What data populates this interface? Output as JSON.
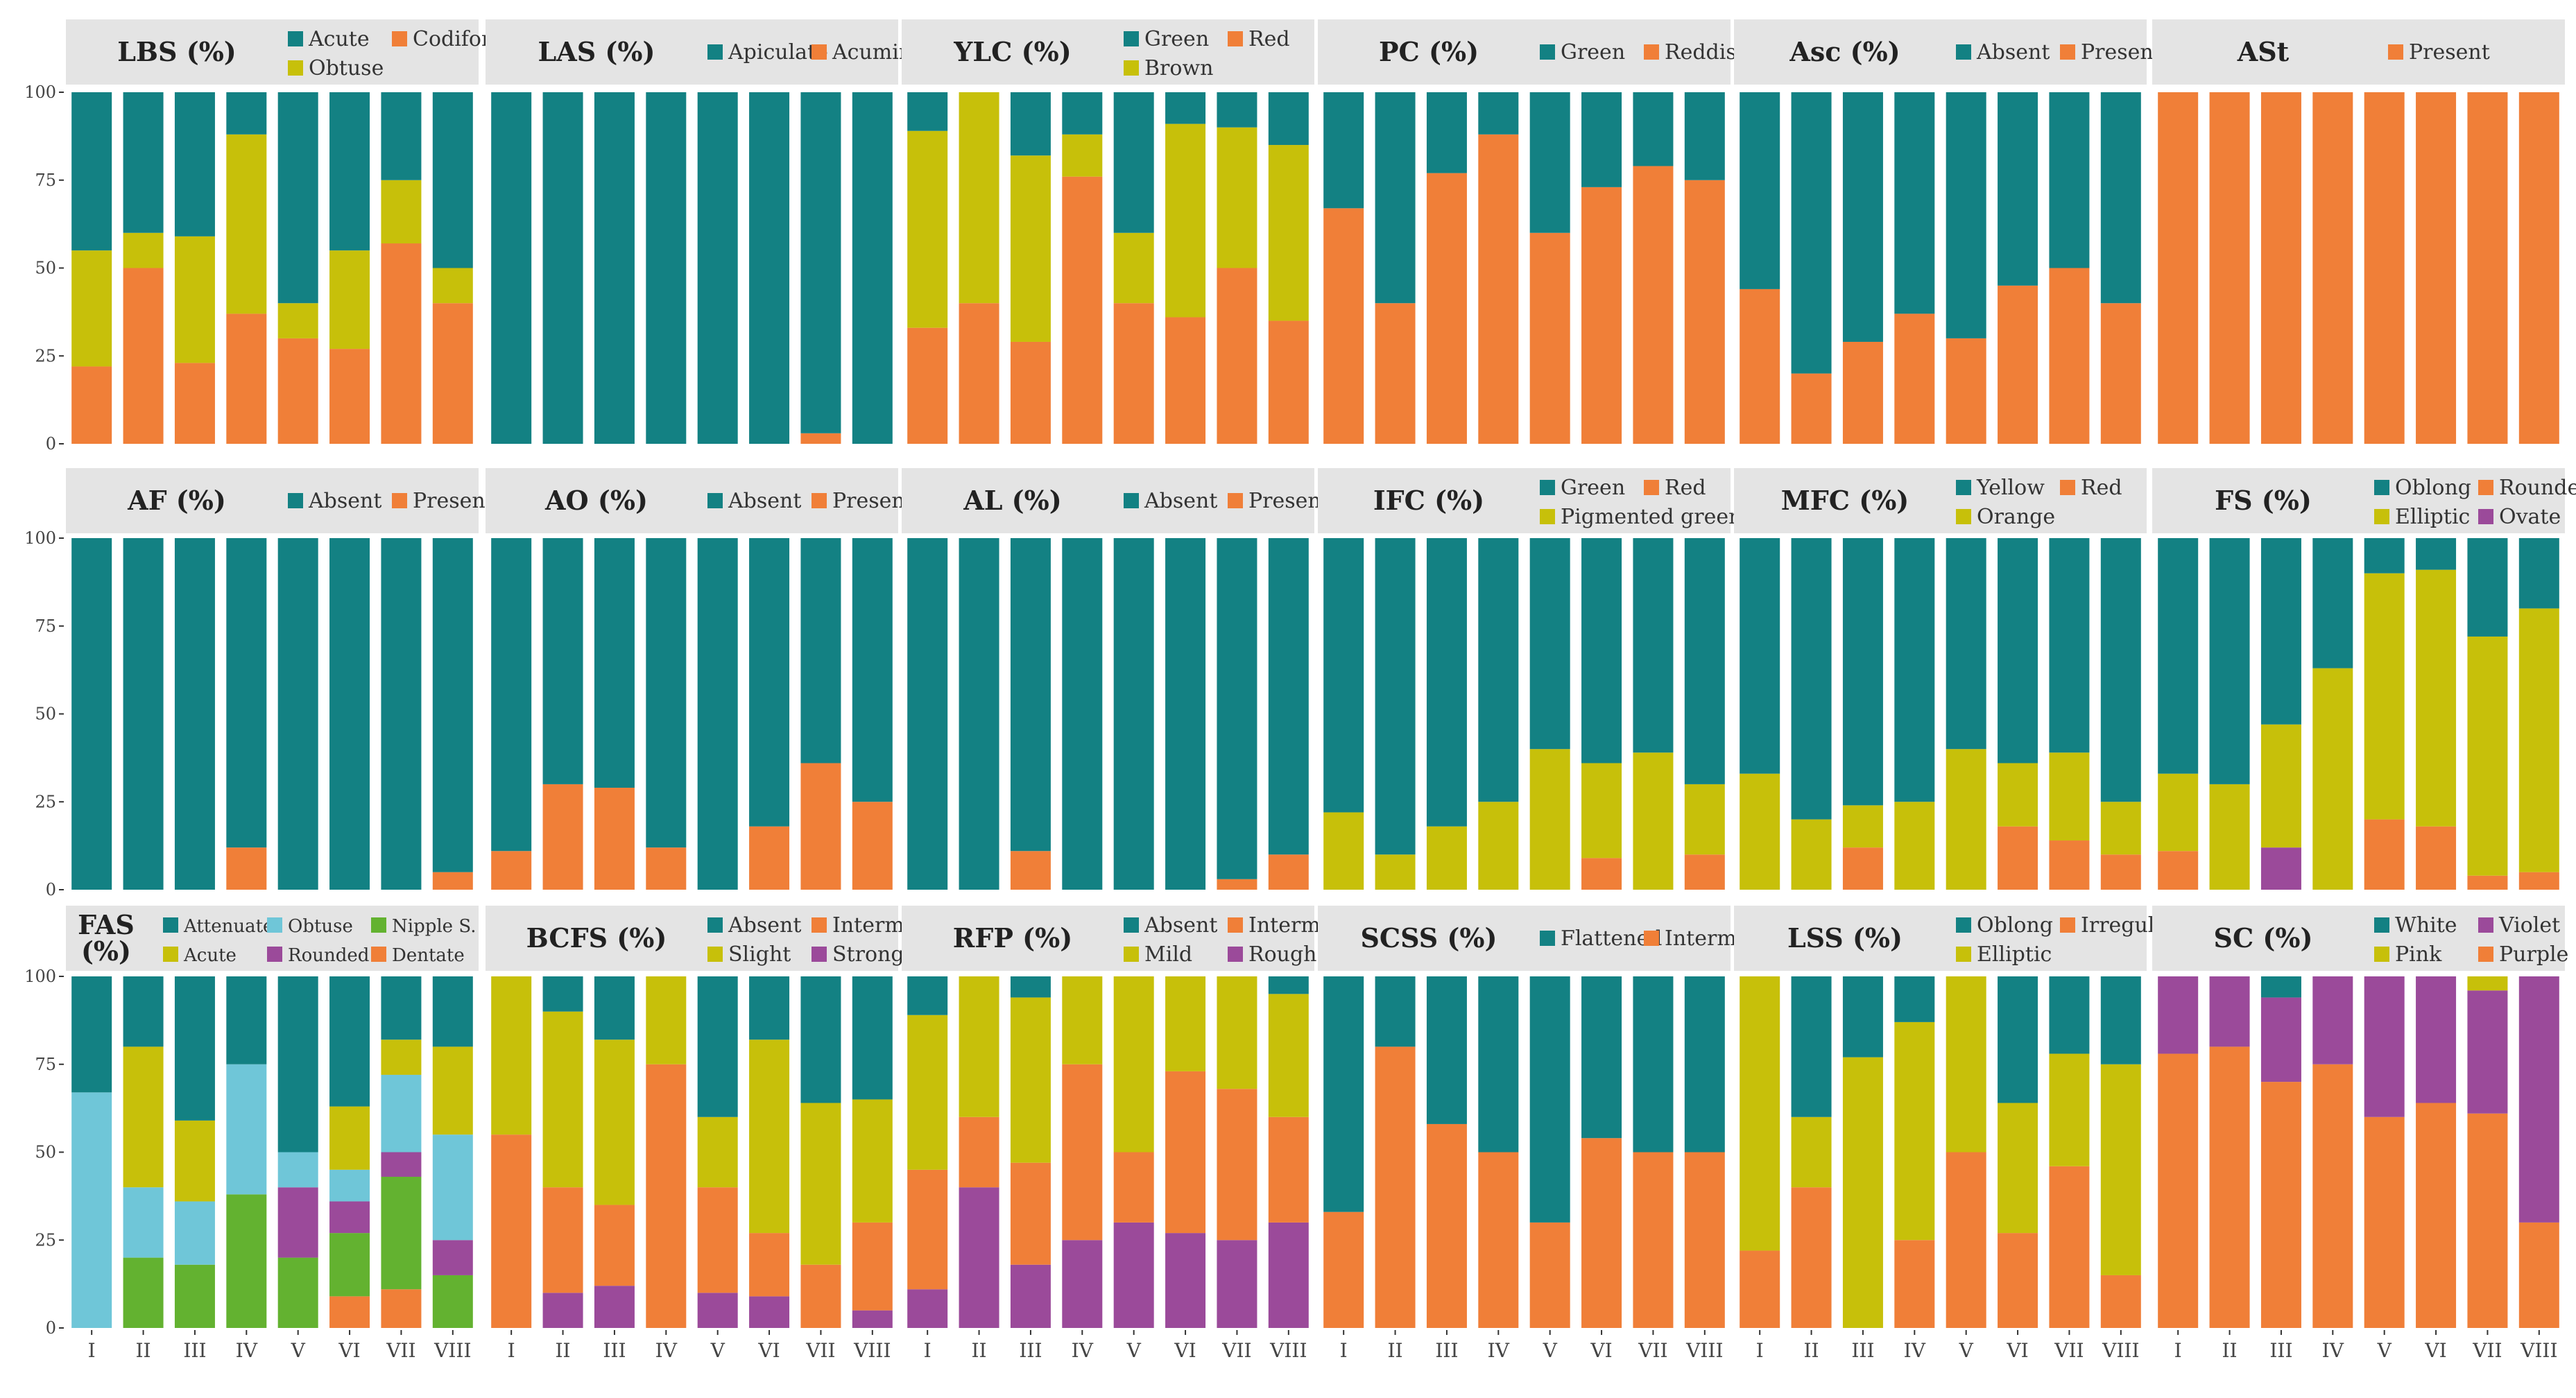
{
  "figure": {
    "y_ticks": [
      "0",
      "25",
      "50",
      "75",
      "100"
    ]
  },
  "chart_data": [
    {
      "type": "bar",
      "title": "LBS (%)",
      "stacked": true,
      "ylim": [
        0,
        100
      ],
      "categories": [
        "I",
        "II",
        "III",
        "IV",
        "V",
        "VI",
        "VII",
        "VIII"
      ],
      "series": [
        {
          "name": "Codiform",
          "values": [
            22,
            50,
            23,
            37,
            30,
            27,
            57,
            40
          ]
        },
        {
          "name": "Obtuse",
          "values": [
            33,
            10,
            36,
            51,
            10,
            28,
            18,
            10
          ]
        },
        {
          "name": "Acute",
          "values": [
            45,
            40,
            41,
            12,
            60,
            45,
            25,
            50
          ]
        }
      ],
      "legend_order": [
        "Acute",
        "Codiform",
        "Obtuse"
      ]
    },
    {
      "type": "bar",
      "title": "LAS (%)",
      "stacked": true,
      "ylim": [
        0,
        100
      ],
      "categories": [
        "I",
        "II",
        "III",
        "IV",
        "V",
        "VI",
        "VII",
        "VIII"
      ],
      "series": [
        {
          "name": "Acuminate",
          "values": [
            0,
            0,
            0,
            0,
            0,
            0,
            3,
            0
          ]
        },
        {
          "name": "Apiculate",
          "values": [
            100,
            100,
            100,
            100,
            100,
            100,
            97,
            100
          ]
        }
      ],
      "legend_order": [
        "Apiculate",
        "Acuminate"
      ]
    },
    {
      "type": "bar",
      "title": "YLC (%)",
      "stacked": true,
      "ylim": [
        0,
        100
      ],
      "categories": [
        "I",
        "II",
        "III",
        "IV",
        "V",
        "VI",
        "VII",
        "VIII"
      ],
      "series": [
        {
          "name": "Red",
          "values": [
            33,
            40,
            29,
            76,
            40,
            36,
            50,
            35
          ]
        },
        {
          "name": "Brown",
          "values": [
            56,
            60,
            53,
            12,
            20,
            55,
            40,
            50
          ]
        },
        {
          "name": "Green",
          "values": [
            11,
            0,
            18,
            12,
            40,
            9,
            10,
            15
          ]
        }
      ],
      "legend_order": [
        "Green",
        "Red",
        "Brown"
      ]
    },
    {
      "type": "bar",
      "title": "PC (%)",
      "stacked": true,
      "ylim": [
        0,
        100
      ],
      "categories": [
        "I",
        "II",
        "III",
        "IV",
        "V",
        "VI",
        "VII",
        "VIII"
      ],
      "series": [
        {
          "name": "Reddish green",
          "values": [
            67,
            40,
            77,
            88,
            60,
            73,
            79,
            75
          ]
        },
        {
          "name": "Green",
          "values": [
            33,
            60,
            23,
            12,
            40,
            27,
            21,
            25
          ]
        }
      ],
      "legend_order": [
        "Green",
        "Reddish green"
      ]
    },
    {
      "type": "bar",
      "title": "Asc (%)",
      "stacked": true,
      "ylim": [
        0,
        100
      ],
      "categories": [
        "I",
        "II",
        "III",
        "IV",
        "V",
        "VI",
        "VII",
        "VIII"
      ],
      "series": [
        {
          "name": "Present",
          "values": [
            44,
            20,
            29,
            37,
            30,
            45,
            50,
            40
          ]
        },
        {
          "name": "Absent",
          "values": [
            56,
            80,
            71,
            63,
            70,
            55,
            50,
            60
          ]
        }
      ],
      "legend_order": [
        "Absent",
        "Present"
      ]
    },
    {
      "type": "bar",
      "title": "ASt",
      "stacked": true,
      "ylim": [
        0,
        100
      ],
      "categories": [
        "I",
        "II",
        "III",
        "IV",
        "V",
        "VI",
        "VII",
        "VIII"
      ],
      "series": [
        {
          "name": "Present",
          "values": [
            100,
            100,
            100,
            100,
            100,
            100,
            100,
            100
          ]
        }
      ],
      "legend_order": [
        "Present"
      ]
    },
    {
      "type": "bar",
      "title": "AF (%)",
      "stacked": true,
      "ylim": [
        0,
        100
      ],
      "categories": [
        "I",
        "II",
        "III",
        "IV",
        "V",
        "VI",
        "VII",
        "VIII"
      ],
      "series": [
        {
          "name": "Present",
          "values": [
            0,
            0,
            0,
            12,
            0,
            0,
            0,
            5
          ]
        },
        {
          "name": "Absent",
          "values": [
            100,
            100,
            100,
            88,
            100,
            100,
            100,
            95
          ]
        }
      ],
      "legend_order": [
        "Absent",
        "Present"
      ]
    },
    {
      "type": "bar",
      "title": "AO (%)",
      "stacked": true,
      "ylim": [
        0,
        100
      ],
      "categories": [
        "I",
        "II",
        "III",
        "IV",
        "V",
        "VI",
        "VII",
        "VIII"
      ],
      "series": [
        {
          "name": "Present",
          "values": [
            11,
            30,
            29,
            12,
            0,
            18,
            36,
            25
          ]
        },
        {
          "name": "Absent",
          "values": [
            89,
            70,
            71,
            88,
            100,
            82,
            64,
            75
          ]
        }
      ],
      "legend_order": [
        "Absent",
        "Present"
      ]
    },
    {
      "type": "bar",
      "title": "AL (%)",
      "stacked": true,
      "ylim": [
        0,
        100
      ],
      "categories": [
        "I",
        "II",
        "III",
        "IV",
        "V",
        "VI",
        "VII",
        "VIII"
      ],
      "series": [
        {
          "name": "Present",
          "values": [
            0,
            0,
            11,
            0,
            0,
            0,
            3,
            10
          ]
        },
        {
          "name": "Absent",
          "values": [
            100,
            100,
            89,
            100,
            100,
            100,
            97,
            90
          ]
        }
      ],
      "legend_order": [
        "Absent",
        "Present"
      ]
    },
    {
      "type": "bar",
      "title": "IFC (%)",
      "stacked": true,
      "ylim": [
        0,
        100
      ],
      "categories": [
        "I",
        "II",
        "III",
        "IV",
        "V",
        "VI",
        "VII",
        "VIII"
      ],
      "series": [
        {
          "name": "Red",
          "values": [
            0,
            0,
            0,
            0,
            0,
            9,
            0,
            10
          ]
        },
        {
          "name": "Pigmented green",
          "values": [
            22,
            10,
            18,
            25,
            40,
            27,
            39,
            20
          ]
        },
        {
          "name": "Green",
          "values": [
            78,
            90,
            82,
            75,
            60,
            64,
            61,
            70
          ]
        }
      ],
      "legend_order": [
        "Green",
        "Red",
        "Pigmented green"
      ]
    },
    {
      "type": "bar",
      "title": "MFC (%)",
      "stacked": true,
      "ylim": [
        0,
        100
      ],
      "categories": [
        "I",
        "II",
        "III",
        "IV",
        "V",
        "VI",
        "VII",
        "VIII"
      ],
      "series": [
        {
          "name": "Red",
          "values": [
            0,
            0,
            12,
            0,
            0,
            18,
            14,
            10
          ]
        },
        {
          "name": "Orange",
          "values": [
            33,
            20,
            12,
            25,
            40,
            18,
            25,
            15
          ]
        },
        {
          "name": "Yellow",
          "values": [
            67,
            80,
            76,
            75,
            60,
            64,
            61,
            75
          ]
        }
      ],
      "legend_order": [
        "Yellow",
        "Red",
        "Orange"
      ]
    },
    {
      "type": "bar",
      "title": "FS (%)",
      "stacked": true,
      "ylim": [
        0,
        100
      ],
      "categories": [
        "I",
        "II",
        "III",
        "IV",
        "V",
        "VI",
        "VII",
        "VIII"
      ],
      "series": [
        {
          "name": "Ovate",
          "values": [
            0,
            0,
            12,
            0,
            0,
            0,
            0,
            0
          ]
        },
        {
          "name": "Rounded",
          "values": [
            11,
            0,
            0,
            0,
            20,
            18,
            4,
            5
          ]
        },
        {
          "name": "Elliptic",
          "values": [
            22,
            30,
            35,
            63,
            70,
            73,
            68,
            75
          ]
        },
        {
          "name": "Oblong",
          "values": [
            67,
            70,
            53,
            37,
            10,
            9,
            28,
            20
          ]
        }
      ],
      "legend_order": [
        "Oblong",
        "Rounded",
        "Elliptic",
        "Ovate"
      ]
    },
    {
      "type": "bar",
      "title": "FAS (%)",
      "stacked": true,
      "ylim": [
        0,
        100
      ],
      "categories": [
        "I",
        "II",
        "III",
        "IV",
        "V",
        "VI",
        "VII",
        "VIII"
      ],
      "series": [
        {
          "name": "Dentate",
          "values": [
            0,
            0,
            0,
            0,
            0,
            9,
            11,
            0
          ]
        },
        {
          "name": "Nipple S.",
          "values": [
            0,
            20,
            18,
            38,
            20,
            18,
            32,
            15
          ]
        },
        {
          "name": "Rounded",
          "values": [
            0,
            0,
            0,
            0,
            20,
            9,
            7,
            10
          ]
        },
        {
          "name": "Obtuse",
          "values": [
            67,
            20,
            18,
            37,
            10,
            9,
            22,
            30
          ]
        },
        {
          "name": "Acute",
          "values": [
            0,
            40,
            23,
            0,
            0,
            18,
            10,
            25
          ]
        },
        {
          "name": "Attenuate",
          "values": [
            33,
            20,
            41,
            25,
            50,
            37,
            18,
            20
          ]
        }
      ],
      "legend_order": [
        "Attenuate",
        "Obtuse",
        "Nipple S.",
        "Acute",
        "Rounded",
        "Dentate"
      ]
    },
    {
      "type": "bar",
      "title": "BCFS (%)",
      "stacked": true,
      "ylim": [
        0,
        100
      ],
      "categories": [
        "I",
        "II",
        "III",
        "IV",
        "V",
        "VI",
        "VII",
        "VIII"
      ],
      "series": [
        {
          "name": "Strong",
          "values": [
            0,
            10,
            12,
            0,
            10,
            9,
            0,
            5
          ]
        },
        {
          "name": "Intermediate",
          "values": [
            55,
            30,
            23,
            75,
            30,
            18,
            18,
            25
          ]
        },
        {
          "name": "Slight",
          "values": [
            45,
            50,
            47,
            25,
            20,
            55,
            46,
            35
          ]
        },
        {
          "name": "Absent",
          "values": [
            0,
            10,
            18,
            0,
            40,
            18,
            36,
            35
          ]
        }
      ],
      "legend_order": [
        "Absent",
        "Intermediate",
        "Slight",
        "Strong"
      ]
    },
    {
      "type": "bar",
      "title": "RFP (%)",
      "stacked": true,
      "ylim": [
        0,
        100
      ],
      "categories": [
        "I",
        "II",
        "III",
        "IV",
        "V",
        "VI",
        "VII",
        "VIII"
      ],
      "series": [
        {
          "name": "Rough",
          "values": [
            11,
            40,
            18,
            25,
            30,
            27,
            25,
            30
          ]
        },
        {
          "name": "Intermediate",
          "values": [
            34,
            20,
            29,
            50,
            20,
            46,
            43,
            30
          ]
        },
        {
          "name": "Mild",
          "values": [
            44,
            40,
            47,
            25,
            50,
            27,
            32,
            35
          ]
        },
        {
          "name": "Absent",
          "values": [
            11,
            0,
            6,
            0,
            0,
            0,
            0,
            5
          ]
        }
      ],
      "legend_order": [
        "Absent",
        "Intermediate",
        "Mild",
        "Rough"
      ]
    },
    {
      "type": "bar",
      "title": "SCSS (%)",
      "stacked": true,
      "ylim": [
        0,
        100
      ],
      "categories": [
        "I",
        "II",
        "III",
        "IV",
        "V",
        "VI",
        "VII",
        "VIII"
      ],
      "series": [
        {
          "name": "Intermediate",
          "values": [
            33,
            80,
            58,
            50,
            30,
            54,
            50,
            50
          ]
        },
        {
          "name": "Flattened",
          "values": [
            67,
            20,
            42,
            50,
            70,
            46,
            50,
            50
          ]
        }
      ],
      "legend_order": [
        "Flattened",
        "Intermediate"
      ]
    },
    {
      "type": "bar",
      "title": "LSS (%)",
      "stacked": true,
      "ylim": [
        0,
        100
      ],
      "categories": [
        "I",
        "II",
        "III",
        "IV",
        "V",
        "VI",
        "VII",
        "VIII"
      ],
      "series": [
        {
          "name": "Irregular",
          "values": [
            22,
            40,
            0,
            25,
            50,
            27,
            46,
            15
          ]
        },
        {
          "name": "Elliptic",
          "values": [
            78,
            20,
            77,
            62,
            50,
            37,
            32,
            60
          ]
        },
        {
          "name": "Oblong",
          "values": [
            0,
            40,
            23,
            13,
            0,
            36,
            22,
            25
          ]
        }
      ],
      "legend_order": [
        "Oblong",
        "Irregular",
        "Elliptic"
      ]
    },
    {
      "type": "bar",
      "title": "SC (%)",
      "stacked": true,
      "ylim": [
        0,
        100
      ],
      "categories": [
        "I",
        "II",
        "III",
        "IV",
        "V",
        "VI",
        "VII",
        "VIII"
      ],
      "series": [
        {
          "name": "Purple",
          "values": [
            78,
            80,
            70,
            75,
            60,
            64,
            61,
            30
          ]
        },
        {
          "name": "Violet",
          "values": [
            22,
            20,
            24,
            25,
            40,
            36,
            35,
            70
          ]
        },
        {
          "name": "Pink",
          "values": [
            0,
            0,
            0,
            0,
            0,
            0,
            4,
            0
          ]
        },
        {
          "name": "White",
          "values": [
            0,
            0,
            6,
            0,
            0,
            0,
            0,
            0
          ]
        }
      ],
      "legend_order": [
        "White",
        "Violet",
        "Pink",
        "Purple"
      ]
    }
  ],
  "colors": {
    "teal": "#138183",
    "orange": "#F07F38",
    "olive": "#C7C00A",
    "purple": "#9B4A9A",
    "skyblue": "#6FC6D8",
    "green": "#63B230",
    "strip_bg": "#E4E4E4"
  },
  "series_colors": {
    "Acute": "#138183",
    "Codiform": "#F07F38",
    "Obtuse": "#C7C00A",
    "Apiculate": "#138183",
    "Acuminate": "#F07F38",
    "Green": "#138183",
    "Red": "#F07F38",
    "Brown": "#C7C00A",
    "Reddish green": "#F07F38",
    "Absent": "#138183",
    "Present": "#F07F38",
    "Pigmented green": "#C7C00A",
    "Yellow": "#138183",
    "Orange": "#C7C00A",
    "Oblong": "#138183",
    "Rounded": "#F07F38",
    "Elliptic": "#C7C00A",
    "Ovate": "#9B4A9A",
    "Intermediate": "#F07F38",
    "Slight": "#C7C00A",
    "Strong": "#9B4A9A",
    "Mild": "#C7C00A",
    "Rough": "#9B4A9A",
    "Flattened": "#138183",
    "Irregular": "#F07F38",
    "White": "#138183",
    "Violet": "#9B4A9A",
    "Pink": "#C7C00A",
    "Purple": "#F07F38"
  },
  "panel_color_overrides": {
    "FAS (%)": {
      "Attenuate": "#138183",
      "Obtuse": "#6FC6D8",
      "Nipple S.": "#63B230",
      "Acute": "#C7C00A",
      "Rounded": "#9B4A9A",
      "Dentate": "#F07F38"
    }
  }
}
